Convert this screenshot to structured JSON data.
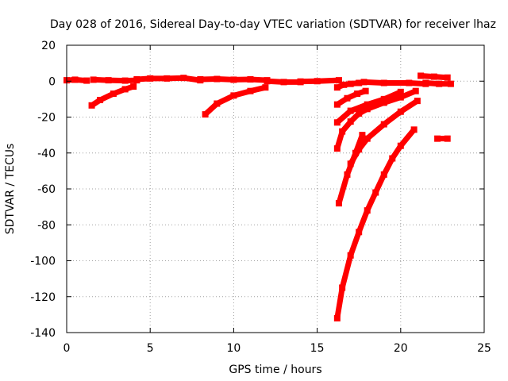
{
  "chart_data": {
    "type": "scatter",
    "title": "Day 028 of 2016, Sidereal Day-to-day VTEC variation (SDTVAR) for receiver lhaz",
    "xlabel": "GPS time / hours",
    "ylabel": "SDTVAR / TECUs",
    "xlim": [
      0,
      25
    ],
    "ylim": [
      -140,
      20
    ],
    "xticks": [
      0,
      5,
      10,
      15,
      20,
      25
    ],
    "yticks": [
      20,
      0,
      -20,
      -40,
      -60,
      -80,
      -100,
      -120,
      -140
    ],
    "grid": true,
    "legend": "none",
    "series_color": "#ff0000",
    "series": [
      {
        "name": "s1",
        "x": [
          0.0,
          0.5,
          1.2
        ],
        "y": [
          0.5,
          0.8,
          0.3
        ]
      },
      {
        "name": "s2",
        "x": [
          1.6,
          2.5,
          3.5,
          4.2
        ],
        "y": [
          0.8,
          0.5,
          0.3,
          0.5
        ]
      },
      {
        "name": "s3",
        "x": [
          4.2,
          5.0,
          6.0,
          7.0,
          8.0
        ],
        "y": [
          1.0,
          1.5,
          1.5,
          1.8,
          0.5
        ]
      },
      {
        "name": "s4",
        "x": [
          8.0,
          9.0,
          10.0,
          11.0,
          12.0
        ],
        "y": [
          1.0,
          1.2,
          0.8,
          1.0,
          0.5
        ]
      },
      {
        "name": "s5",
        "x": [
          12.0,
          13.0,
          14.0
        ],
        "y": [
          0.0,
          -0.5,
          -0.5
        ]
      },
      {
        "name": "s6",
        "x": [
          14.0,
          15.0,
          16.3
        ],
        "y": [
          -0.2,
          0.0,
          0.5
        ]
      },
      {
        "name": "s7",
        "x": [
          1.5,
          2.0,
          2.8,
          3.5,
          4.0
        ],
        "y": [
          -13.5,
          -10.5,
          -7.0,
          -4.5,
          -3.0
        ]
      },
      {
        "name": "s8",
        "x": [
          8.3,
          9.0,
          10.0,
          11.0,
          11.9
        ],
        "y": [
          -18.5,
          -12.5,
          -8.0,
          -5.5,
          -3.5
        ]
      },
      {
        "name": "s9",
        "x": [
          16.2,
          16.6,
          17.0,
          17.5
        ],
        "y": [
          -3.5,
          -2.0,
          -1.5,
          -1.0
        ]
      },
      {
        "name": "s10",
        "x": [
          17.8,
          19.0,
          20.5,
          21.5
        ],
        "y": [
          -0.5,
          -1.0,
          -1.0,
          -1.5
        ]
      },
      {
        "name": "s11",
        "x": [
          21.2,
          22.0,
          22.8
        ],
        "y": [
          3.0,
          2.5,
          2.0
        ]
      },
      {
        "name": "s12",
        "x": [
          21.5,
          22.3,
          23.0
        ],
        "y": [
          -1.0,
          -1.5,
          -1.5
        ]
      },
      {
        "name": "s13",
        "x": [
          16.2,
          16.8,
          17.4,
          17.9
        ],
        "y": [
          -13.0,
          -9.5,
          -7.0,
          -5.5
        ]
      },
      {
        "name": "s14",
        "x": [
          16.2,
          17.0,
          18.0,
          19.0,
          20.0
        ],
        "y": [
          -23.0,
          -16.5,
          -13.0,
          -10.0,
          -6.0
        ]
      },
      {
        "name": "s15",
        "x": [
          16.2,
          16.5,
          17.0,
          17.5,
          18.0,
          19.0,
          20.0,
          20.9
        ],
        "y": [
          -37.5,
          -28.0,
          -22.5,
          -18.0,
          -15.5,
          -12.0,
          -9.0,
          -5.5
        ]
      },
      {
        "name": "s16",
        "x": [
          16.3,
          16.8,
          17.3,
          17.7
        ],
        "y": [
          -68.0,
          -52.0,
          -40.0,
          -30.0
        ]
      },
      {
        "name": "s17",
        "x": [
          17.0,
          17.5,
          18.0,
          19.0,
          20.0,
          21.0
        ],
        "y": [
          -46.0,
          -38.0,
          -32.0,
          -24.0,
          -17.0,
          -11.0
        ]
      },
      {
        "name": "s18",
        "x": [
          16.2,
          16.5,
          17.0,
          17.5,
          18.0,
          18.5,
          19.0,
          19.5,
          20.0,
          20.8
        ],
        "y": [
          -132.0,
          -115.0,
          -97.0,
          -84.0,
          -72.0,
          -62.0,
          -52.0,
          -43.0,
          -36.0,
          -27.0
        ]
      },
      {
        "name": "s19",
        "x": [
          22.2,
          22.8
        ],
        "y": [
          -32.0,
          -32.0
        ]
      }
    ]
  }
}
